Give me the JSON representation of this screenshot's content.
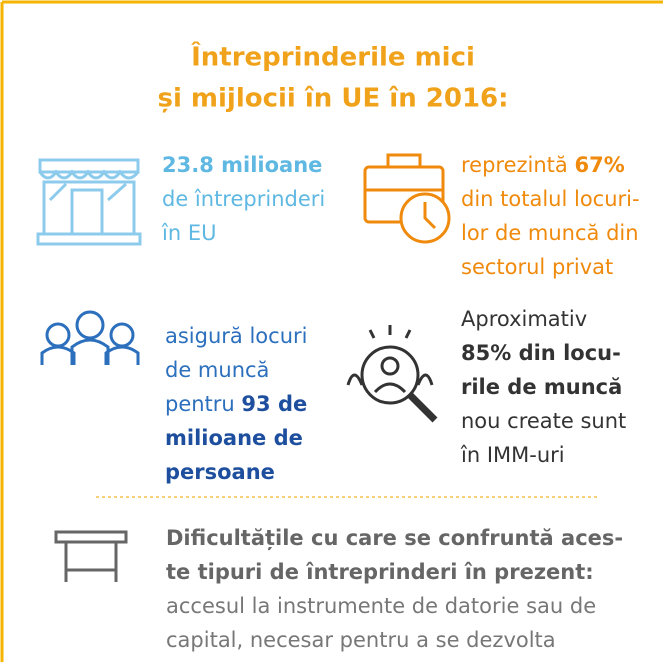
{
  "title": {
    "lines": [
      "Întreprinderile mici",
      "și mijlocii în UE în 2016:"
    ]
  },
  "blocks": [
    {
      "color": "#5fb8e2",
      "bold_color": "#5fb8e2",
      "lines": [
        [
          {
            "text": "23.8 milioane",
            "bold": true
          }
        ],
        [
          {
            "text": "de întreprinderi"
          }
        ],
        [
          {
            "text": "în EU"
          }
        ]
      ]
    },
    {
      "color": "#ef8a0c",
      "bold_color": "#ef8a0c",
      "lines": [
        [
          {
            "text": "reprezintă "
          },
          {
            "text": "67%",
            "bold": true
          }
        ],
        [
          {
            "text": "din totalul locuri-"
          }
        ],
        [
          {
            "text": "lor de muncă din"
          }
        ],
        [
          {
            "text": "sectorul privat"
          }
        ]
      ]
    },
    {
      "color": "#2b6fbd",
      "bold_color": "#1e4f9e",
      "lines": [
        [
          {
            "text": "asigură locuri"
          }
        ],
        [
          {
            "text": "de muncă"
          }
        ],
        [
          {
            "text": "pentru "
          },
          {
            "text": "93 de",
            "bold": true
          }
        ],
        [
          {
            "text": "milioane de",
            "bold": true
          }
        ],
        [
          {
            "text": "persoane",
            "bold": true
          }
        ]
      ]
    },
    {
      "color": "#333333",
      "bold_color": "#333333",
      "lines": [
        [
          {
            "text": "Aproximativ"
          }
        ],
        [
          {
            "text": "85% din locu-",
            "bold": true
          }
        ],
        [
          {
            "text": "rile de muncă",
            "bold": true
          }
        ],
        [
          {
            "text": "nou create sunt"
          }
        ],
        [
          {
            "text": "în IMM-uri"
          }
        ]
      ]
    },
    {
      "color": "#777777",
      "bold_color": "#666666",
      "lines": [
        [
          {
            "text": "Dificultățile cu care se confruntă aces-",
            "bold": true
          }
        ],
        [
          {
            "text": "te tipuri de întreprinderi în prezent:",
            "bold": true
          }
        ],
        [
          {
            "text": "accesul la instrumente de datorie sau de"
          }
        ],
        [
          {
            "text": "capital, necesar pentru a se dezvolta"
          }
        ]
      ]
    }
  ]
}
